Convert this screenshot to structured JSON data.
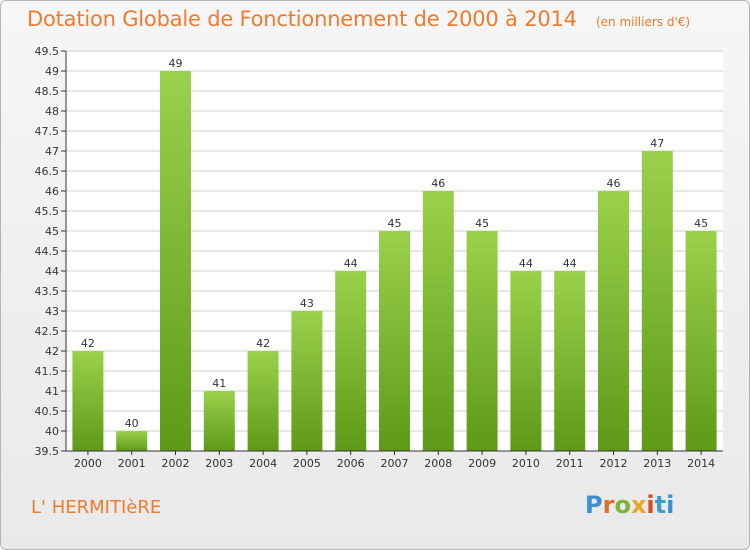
{
  "header": {
    "title": "Dotation Globale de Fonctionnement de 2000 à 2014",
    "subtitle": "(en milliers d'€)"
  },
  "footer": {
    "commune": "L' HERMITIèRE",
    "brand": "Proxiti"
  },
  "colors": {
    "bar_light": "#9ad14c",
    "bar_dark": "#5e9a17",
    "title": "#ee7b2f",
    "grid": "#cfcfcf"
  },
  "chart_data": {
    "type": "bar",
    "title": "Dotation Globale de Fonctionnement de 2000 à 2014",
    "subtitle": "(en milliers d'€)",
    "xlabel": "",
    "ylabel": "",
    "categories": [
      "2000",
      "2001",
      "2002",
      "2003",
      "2004",
      "2005",
      "2006",
      "2007",
      "2008",
      "2009",
      "2010",
      "2011",
      "2012",
      "2013",
      "2014"
    ],
    "values": [
      42,
      40,
      49,
      41,
      42,
      43,
      44,
      45,
      46,
      45,
      44,
      44,
      46,
      47,
      45
    ],
    "data_labels": [
      "42",
      "40",
      "49",
      "41",
      "42",
      "43",
      "44",
      "45",
      "46",
      "45",
      "44",
      "44",
      "46",
      "47",
      "45"
    ],
    "ylim": [
      39.5,
      49.5
    ],
    "yticks": [
      39.5,
      40,
      40.5,
      41,
      41.5,
      42,
      42.5,
      43,
      43.5,
      44,
      44.5,
      45,
      45.5,
      46,
      46.5,
      47,
      47.5,
      48,
      48.5,
      49,
      49.5
    ],
    "ytick_labels": [
      "39.5",
      "40",
      "40.5",
      "41",
      "41.5",
      "42",
      "42.5",
      "43",
      "43.5",
      "44",
      "44.5",
      "45",
      "45.5",
      "46",
      "46.5",
      "47",
      "47.5",
      "48",
      "48.5",
      "49",
      "49.5"
    ],
    "grid": true,
    "legend": "none"
  }
}
